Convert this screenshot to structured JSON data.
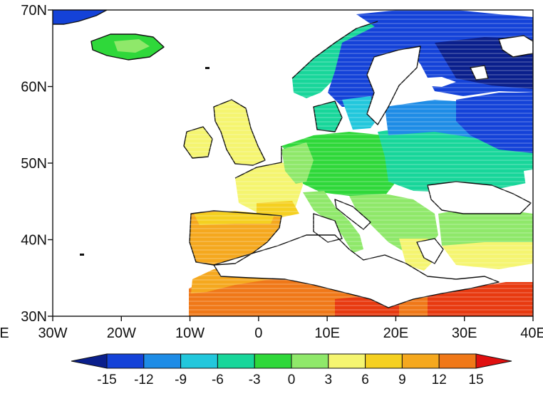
{
  "figure": {
    "type": "filled-contour map",
    "region": "Europe and North Africa",
    "hatching": "horizontal lines over land data",
    "lon_range_deg": [
      -30,
      40
    ],
    "lat_range_deg": [
      30,
      70
    ]
  },
  "axes": {
    "x_ticks": [
      "30W",
      "20W",
      "10W",
      "0",
      "10E",
      "20E",
      "30E",
      "40E"
    ],
    "y_ticks": [
      "70N",
      "60N",
      "50N",
      "40N",
      "30N"
    ],
    "x_edge_fragment": "E"
  },
  "colorbar": {
    "ticks": [
      "-15",
      "-12",
      "-9",
      "-6",
      "-3",
      "0",
      "3",
      "6",
      "9",
      "12",
      "15"
    ],
    "colors": [
      "#0a1f8c",
      "#1442d8",
      "#1e8ce6",
      "#22c7dc",
      "#18d69a",
      "#2fd83a",
      "#8fe86a",
      "#f5f570",
      "#f5d020",
      "#f5a81e",
      "#f07818",
      "#e83a10",
      "#e01010"
    ],
    "extend": "both"
  },
  "palette": {
    "very_cold": "#0a1f8c",
    "cold": "#1442d8",
    "cool": "#1e8ce6",
    "cyan": "#22c7dc",
    "teal_green": "#18d69a",
    "green": "#2fd83a",
    "light_green": "#8fe86a",
    "yellow": "#f5f570",
    "gold": "#f5d020",
    "orange": "#f5a81e",
    "dark_orange": "#f07818",
    "red_orange": "#e83a10",
    "red": "#e01010"
  }
}
